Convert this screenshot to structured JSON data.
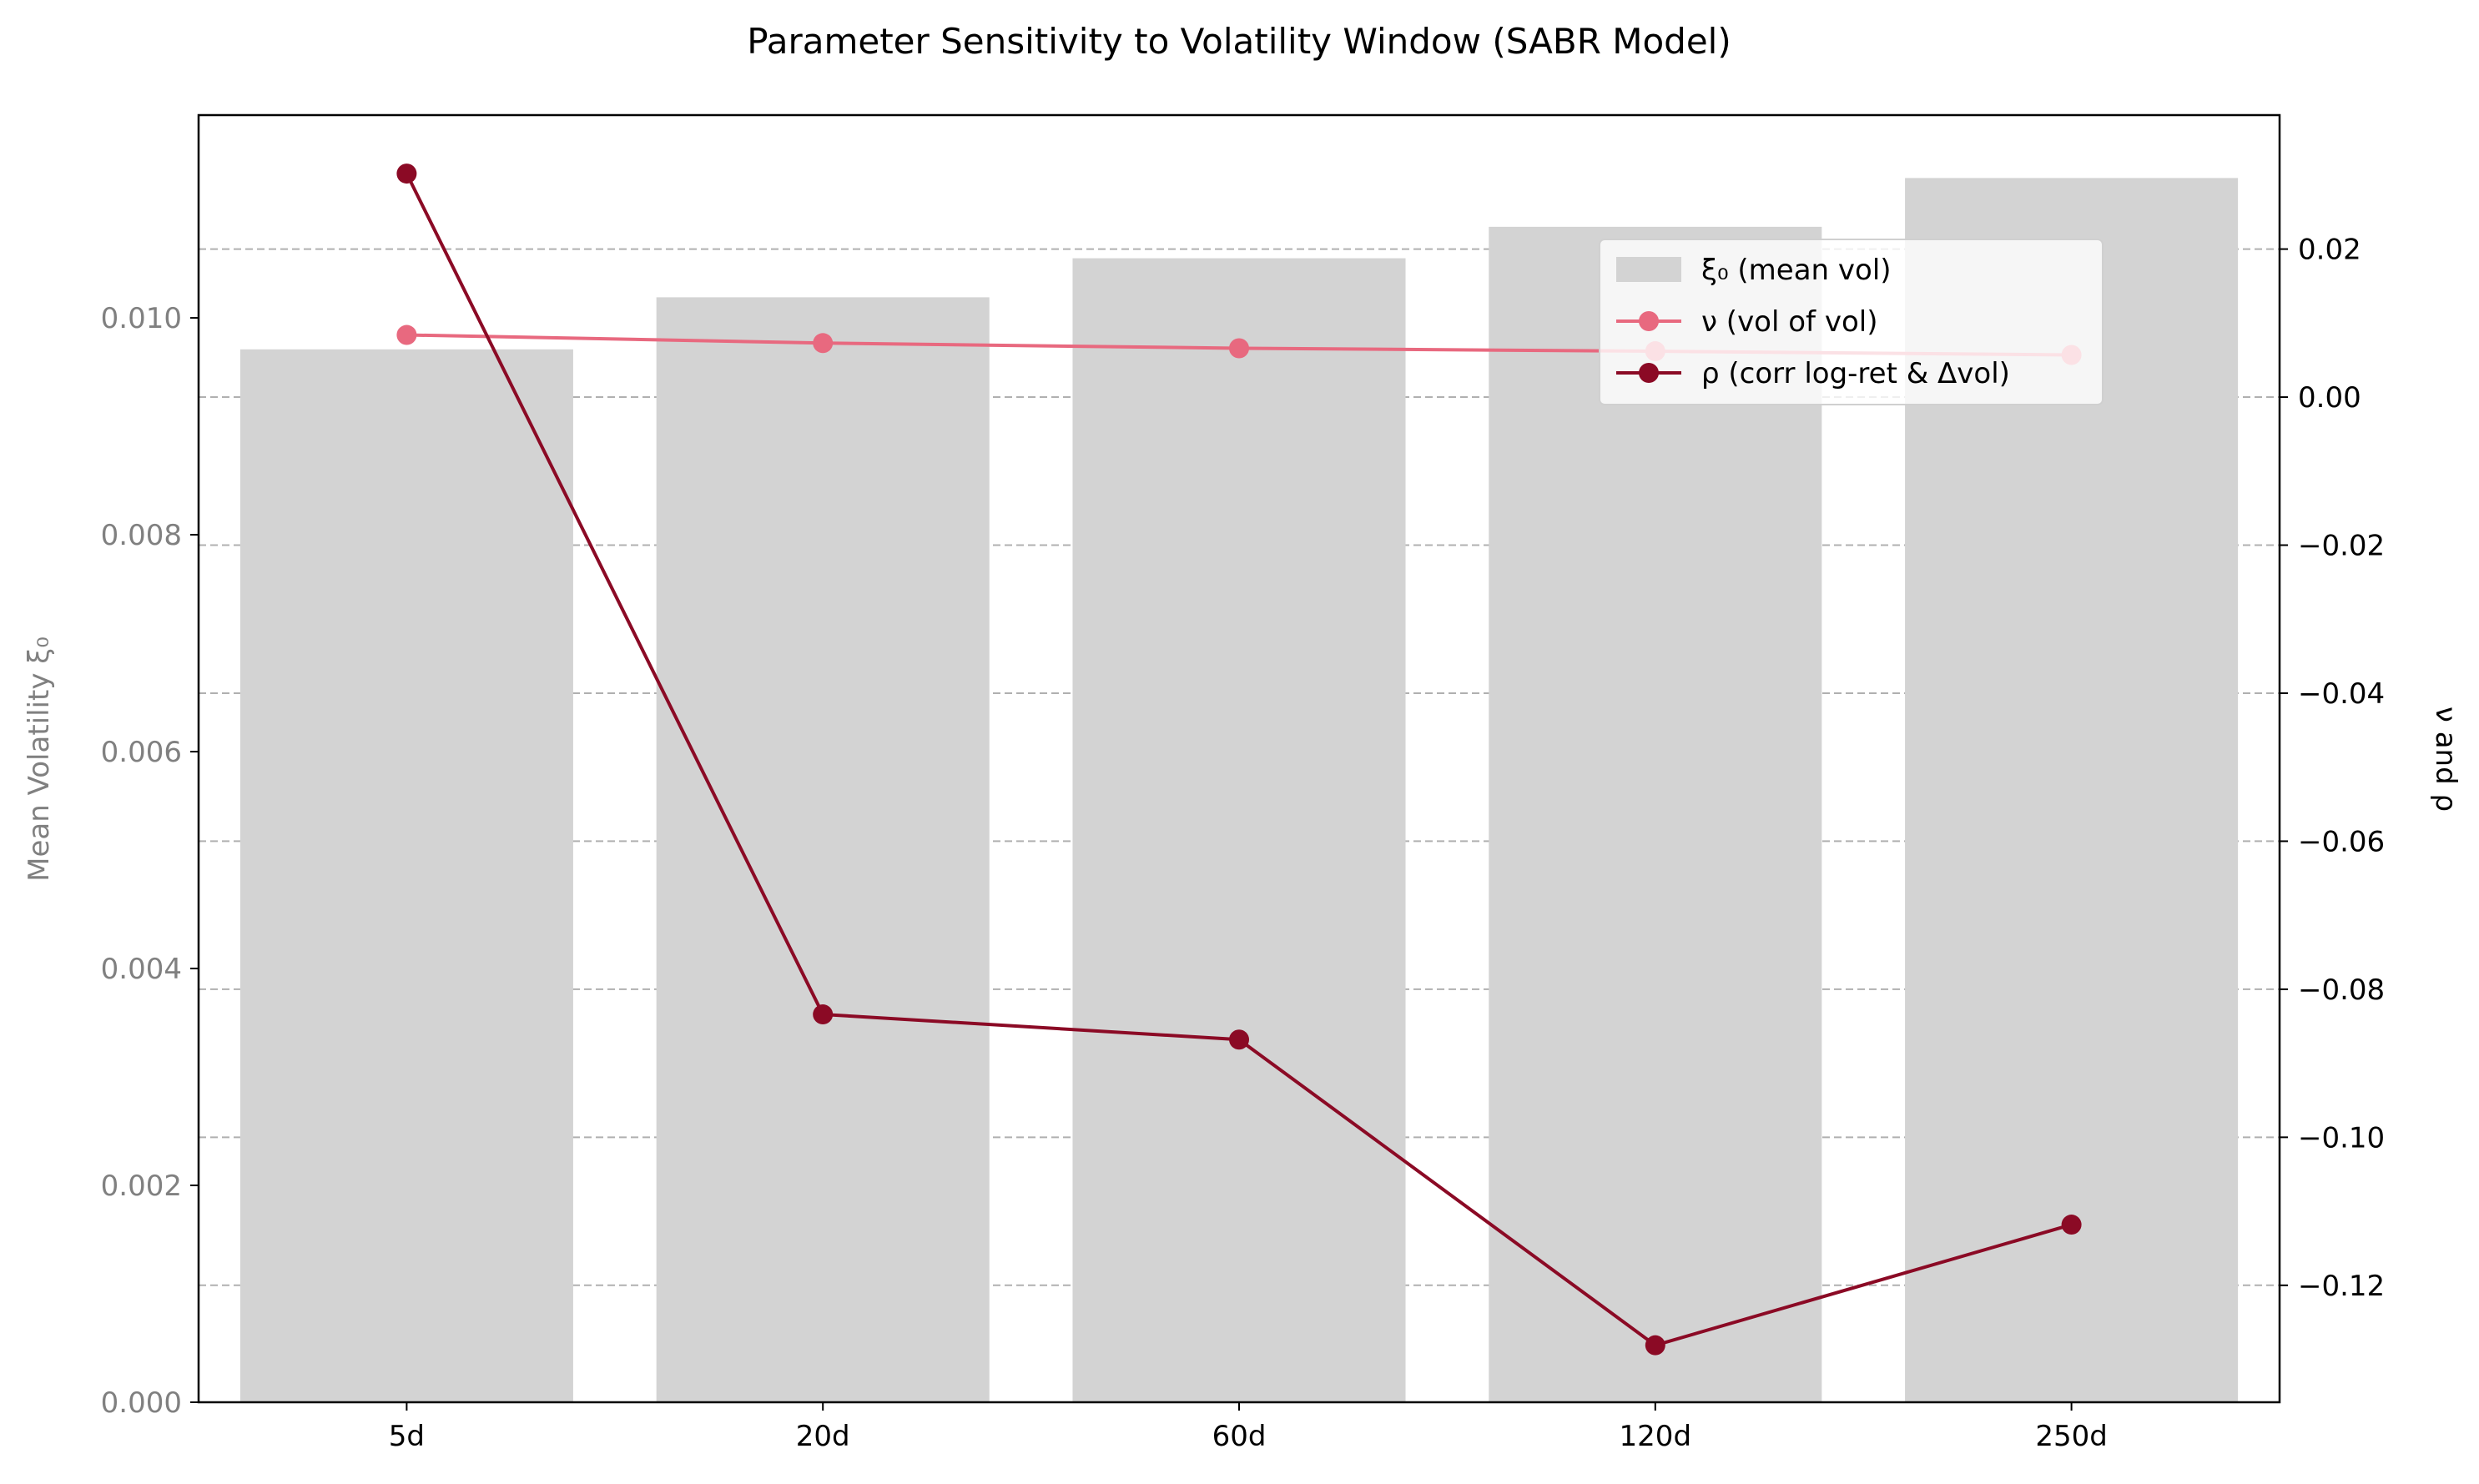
{
  "chart_data": {
    "type": "bar",
    "title": "Parameter Sensitivity to Volatility Window (SABR Model)",
    "categories": [
      "5d",
      "20d",
      "60d",
      "120d",
      "250d"
    ],
    "series": [
      {
        "name": "ξ₀ (mean vol)",
        "type": "bar",
        "axis": "left",
        "values": [
          0.00971,
          0.01019,
          0.01055,
          0.01084,
          0.01129
        ],
        "color": "#d3d3d3"
      },
      {
        "name": "ν (vol of vol)",
        "type": "line",
        "axis": "right",
        "values": [
          0.0084,
          0.0073,
          0.0066,
          0.0062,
          0.0057
        ],
        "color": "#e8697f"
      },
      {
        "name": "ρ (corr log-ret & Δvol)",
        "type": "line",
        "axis": "right",
        "values": [
          0.0302,
          -0.0834,
          -0.0868,
          -0.1281,
          -0.1118
        ],
        "color": "#8b0a25"
      }
    ],
    "y_left": {
      "label": "Mean Volatility ξ₀",
      "ylim": [
        0,
        0.01187
      ],
      "ticks": [
        0,
        0.002,
        0.004,
        0.006,
        0.008,
        0.01
      ],
      "tick_labels": [
        "0.000",
        "0.002",
        "0.004",
        "0.006",
        "0.008",
        "0.010"
      ]
    },
    "y_right": {
      "label": "ν and ρ",
      "ylim": [
        -0.1358,
        0.0381
      ],
      "ticks": [
        0.02,
        0,
        -0.02,
        -0.04,
        -0.06,
        -0.08,
        -0.1,
        -0.12
      ],
      "tick_labels": [
        "0.02",
        "0.00",
        "−0.02",
        "−0.04",
        "−0.06",
        "−0.08",
        "−0.10",
        "−0.12"
      ]
    },
    "grid": "horizontal dashed on right axis",
    "legend_position": "upper-right"
  }
}
